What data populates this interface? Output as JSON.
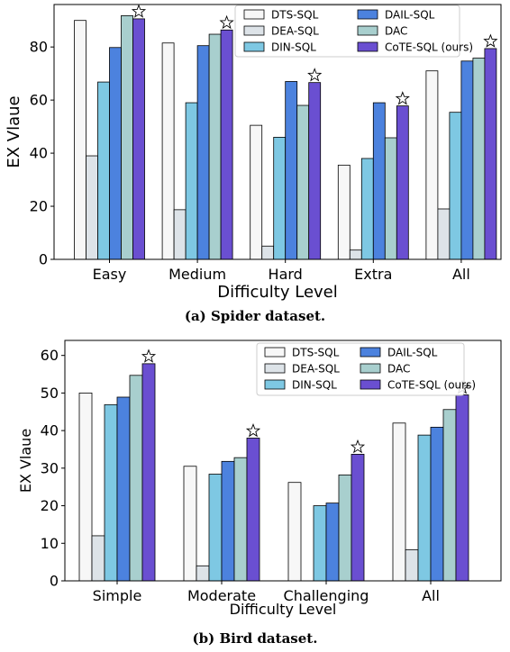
{
  "chart_data": [
    {
      "type": "bar",
      "caption": "(a) Spider dataset.",
      "xlabel": "Difficulty Level",
      "ylabel": "EX Vlaue",
      "ylim": [
        0,
        96
      ],
      "yticks": [
        0,
        20,
        40,
        60,
        80
      ],
      "categories": [
        "Easy",
        "Medium",
        "Hard",
        "Extra",
        "All"
      ],
      "series": [
        {
          "name": "DTS-SQL",
          "color": "#f7f7f7",
          "values": [
            90,
            81.5,
            50.5,
            35.5,
            71
          ]
        },
        {
          "name": "DEA-SQL",
          "color": "#dde3e8",
          "values": [
            39,
            18.7,
            5,
            3.5,
            19
          ]
        },
        {
          "name": "DIN-SQL",
          "color": "#7ec8e3",
          "values": [
            66.8,
            59,
            46,
            38,
            55.4
          ]
        },
        {
          "name": "DAIL-SQL",
          "color": "#4c82de",
          "values": [
            79.8,
            80.5,
            67,
            59,
            74.7
          ]
        },
        {
          "name": "DAC",
          "color": "#a8cfce",
          "values": [
            91.8,
            84.8,
            58,
            45.8,
            75.8
          ]
        },
        {
          "name": "CoTE-SQL (ours)",
          "color": "#6a4fd1",
          "values": [
            90.6,
            86.4,
            66.6,
            57.8,
            79.4
          ]
        }
      ],
      "star_series": "CoTE-SQL (ours)",
      "legend_position": "top-right",
      "grid": false
    },
    {
      "type": "bar",
      "caption": "(b) Bird dataset.",
      "xlabel": "Difficulty Level",
      "ylabel": "EX Vlaue",
      "ylim": [
        0,
        64
      ],
      "yticks": [
        0,
        10,
        20,
        30,
        40,
        50,
        60
      ],
      "categories": [
        "Simple",
        "Moderate",
        "Challenging",
        "All"
      ],
      "series": [
        {
          "name": "DTS-SQL",
          "color": "#f7f7f7",
          "values": [
            50,
            30.5,
            26.2,
            42
          ]
        },
        {
          "name": "DEA-SQL",
          "color": "#dde3e8",
          "values": [
            12,
            4,
            0,
            8.3
          ]
        },
        {
          "name": "DIN-SQL",
          "color": "#7ec8e3",
          "values": [
            46.9,
            28.4,
            20,
            38.8
          ]
        },
        {
          "name": "DAIL-SQL",
          "color": "#4c82de",
          "values": [
            48.9,
            31.8,
            20.7,
            40.9
          ]
        },
        {
          "name": "DAC",
          "color": "#a8cfce",
          "values": [
            54.7,
            32.8,
            28.2,
            45.6
          ]
        },
        {
          "name": "CoTE-SQL (ours)",
          "color": "#6a4fd1",
          "values": [
            57.8,
            38,
            33.7,
            49.5
          ]
        }
      ],
      "star_series": "CoTE-SQL (ours)",
      "legend_position": "top-right",
      "grid": false
    }
  ]
}
